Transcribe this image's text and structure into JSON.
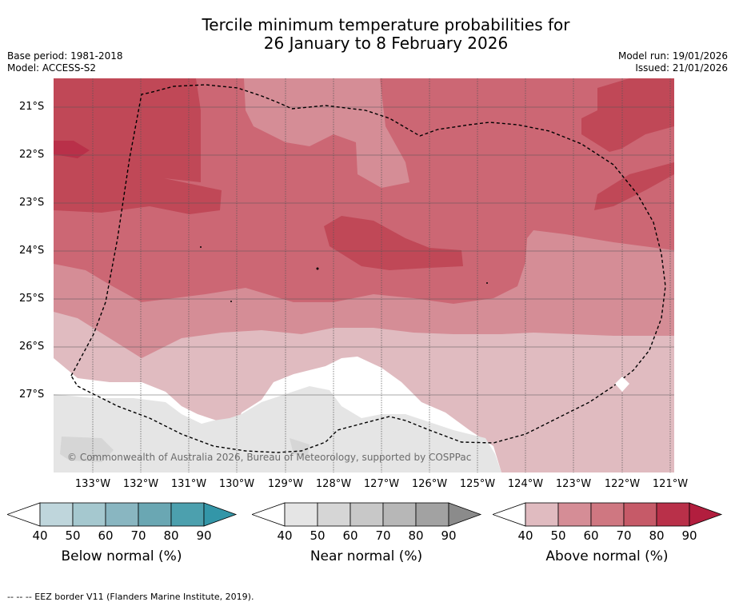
{
  "title_line1": "Tercile minimum temperature probabilities for",
  "title_line2": "26 January to 8 February 2026",
  "base_period": "Base period: 1981-2018",
  "model": "Model: ACCESS-S2",
  "model_run": "Model run: 19/01/2026",
  "issued": "Issued: 21/01/2026",
  "latitude_labels": [
    "21°S",
    "22°S",
    "23°S",
    "24°S",
    "25°S",
    "26°S",
    "27°S"
  ],
  "longitude_labels": [
    "133°W",
    "132°W",
    "131°W",
    "130°W",
    "129°W",
    "128°W",
    "127°W",
    "126°W",
    "125°W",
    "124°W",
    "123°W",
    "122°W",
    "121°W"
  ],
  "copyright": "© Commonwealth of Australia 2026, Bureau of Meteorology, supported by COSPPac",
  "colorbars": [
    {
      "label": "Below normal (%)",
      "ticks": [
        "40",
        "50",
        "60",
        "70",
        "80",
        "90"
      ],
      "colors": [
        "#bfd6dc",
        "#a5c8cf",
        "#89b6c1",
        "#6aa7b3",
        "#4ca0ae",
        "#3396a8"
      ]
    },
    {
      "label": "Near normal (%)",
      "ticks": [
        "40",
        "50",
        "60",
        "70",
        "80",
        "90"
      ],
      "colors": [
        "#e5e5e5",
        "#d6d6d6",
        "#c8c8c8",
        "#b7b7b7",
        "#a2a2a2",
        "#8b8b8b"
      ]
    },
    {
      "label": "Above normal (%)",
      "ticks": [
        "40",
        "50",
        "60",
        "70",
        "80",
        "90"
      ],
      "colors": [
        "#e0bbc0",
        "#d58d96",
        "#cf7781",
        "#c65a68",
        "#b93049",
        "#b21e3e"
      ]
    }
  ],
  "footnote": "--  --  -- EEZ border V11 (Flanders Marine Institute, 2019).",
  "map_colors": {
    "above_80": "#b93049",
    "above_70": "#c04857",
    "above_60": "#cc6774",
    "above_50": "#d58d96",
    "above_40": "#e0bbc0",
    "near_40": "#e5e5e5",
    "near_50": "#d6d6d6",
    "none": "#ffffff"
  }
}
